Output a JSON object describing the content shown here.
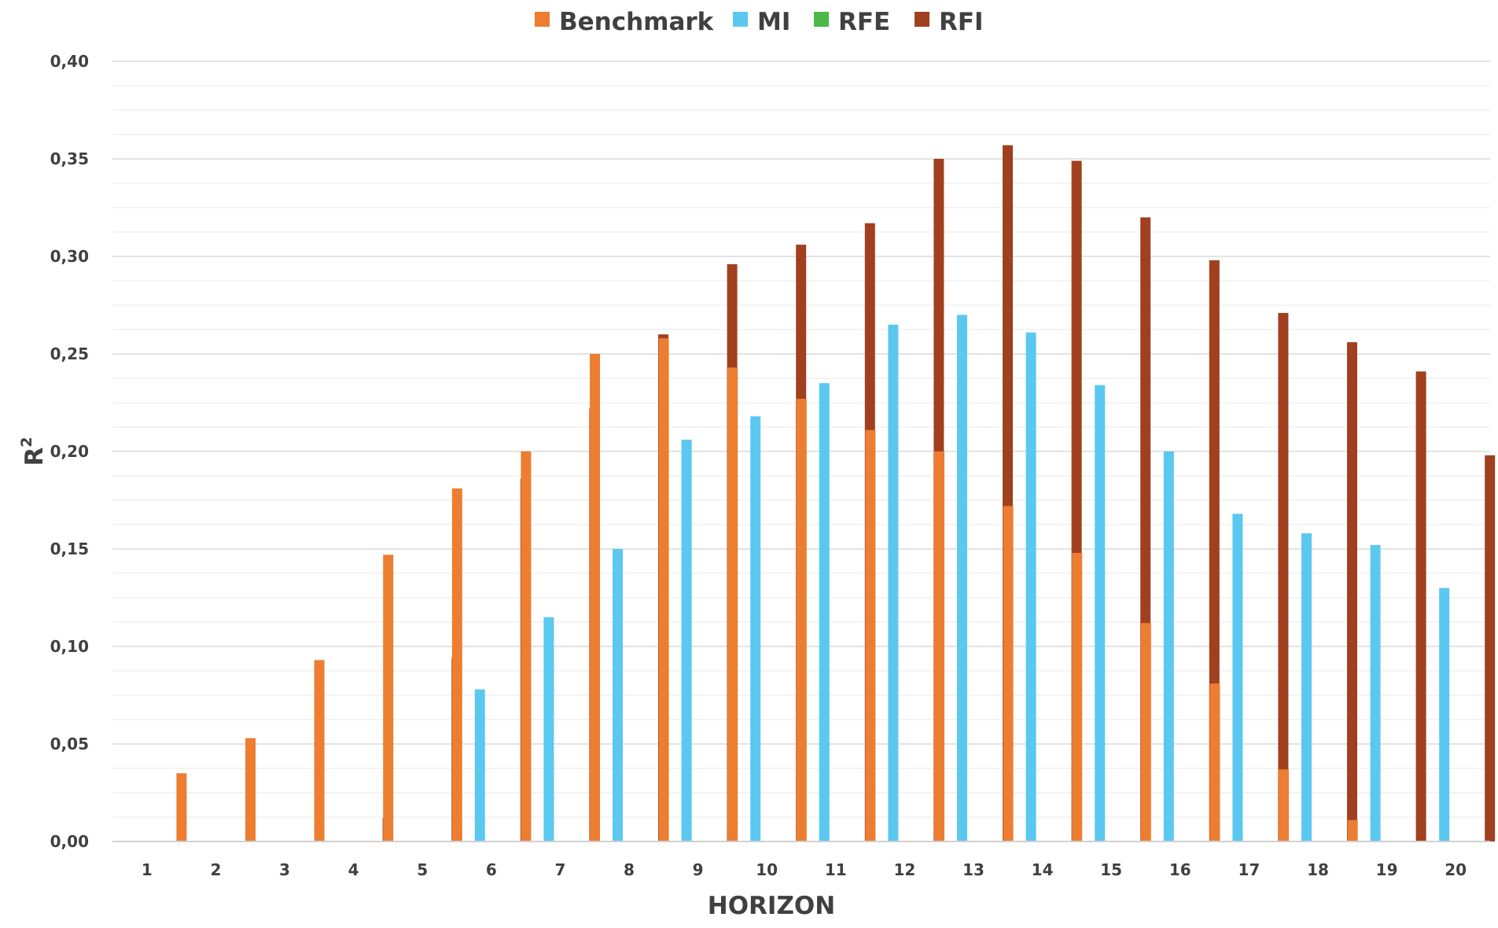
{
  "chart_data": {
    "type": "bar",
    "title": "",
    "xlabel": "HORIZON",
    "ylabel": "R",
    "ylabel_superscript": "2",
    "ylim": [
      0,
      0.4
    ],
    "yticks": [
      "0,00",
      "0,05",
      "0,10",
      "0,15",
      "0,20",
      "0,25",
      "0,30",
      "0,35",
      "0,40"
    ],
    "ytick_values": [
      0,
      0.05,
      0.1,
      0.15,
      0.2,
      0.25,
      0.3,
      0.35,
      0.4
    ],
    "grid": true,
    "legend_position": "top-center",
    "categories": [
      "1",
      "2",
      "3",
      "4",
      "5",
      "6",
      "7",
      "8",
      "9",
      "10",
      "11",
      "12",
      "13",
      "14",
      "15",
      "16",
      "17",
      "18",
      "19",
      "20"
    ],
    "series": [
      {
        "name": "Benchmark",
        "color": "#ED7D31",
        "values": [
          0,
          0.035,
          0.053,
          0.093,
          0.147,
          0.181,
          0.2,
          0.25,
          0.258,
          0.243,
          0.227,
          0.211,
          0.2,
          0.172,
          0.148,
          0.112,
          0.081,
          0.037,
          0.011,
          0
        ]
      },
      {
        "name": "MI",
        "color": "#5BC8F0",
        "values": [
          0,
          0,
          0,
          0,
          0,
          0.078,
          0.115,
          0.15,
          0.206,
          0.218,
          0.235,
          0.265,
          0.27,
          0.261,
          0.234,
          0.2,
          0.168,
          0.158,
          0.152,
          0.13
        ]
      },
      {
        "name": "RFE",
        "color": "#4CB848",
        "values": [
          0,
          0,
          0,
          0,
          0,
          0,
          0,
          0,
          0,
          0,
          0,
          0,
          0,
          0,
          0,
          0,
          0,
          0,
          0,
          0
        ]
      },
      {
        "name": "RFI",
        "color": "#A0401F",
        "values": [
          0,
          0,
          0,
          0.012,
          0.094,
          0.186,
          0.222,
          0.26,
          0.296,
          0.306,
          0.317,
          0.35,
          0.357,
          0.349,
          0.32,
          0.298,
          0.271,
          0.256,
          0.241,
          0.198
        ]
      }
    ]
  }
}
